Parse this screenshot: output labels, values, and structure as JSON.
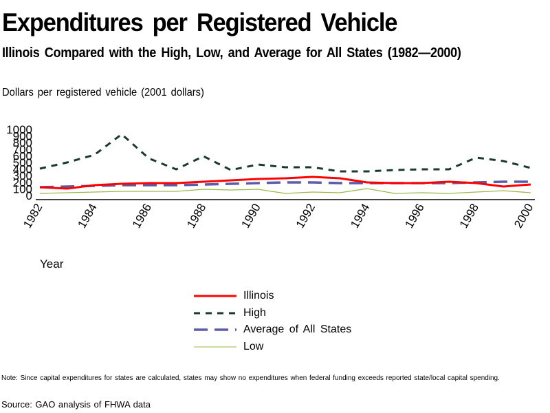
{
  "header": {
    "title": "Expenditures per Registered Vehicle",
    "subtitle": "Illinois Compared with the High, Low, and Average for All States (1982—2000)"
  },
  "footer": {
    "note": "Note: Since capital expenditures for states are calculated, states may show no expenditures when federal funding exceeds reported state/local capital spending.",
    "source": "Source: GAO analysis of FHWA data"
  },
  "chart_data": {
    "type": "line",
    "title": "Expenditures per Registered Vehicle",
    "subtitle": "Illinois Compared with the High, Low, and Average for All States (1982—2000)",
    "xlabel": "Year",
    "ylabel": "Dollars per registered vehicle (2001 dollars)",
    "ylim": [
      0,
      1000
    ],
    "yticks": [
      0,
      100,
      200,
      300,
      400,
      500,
      600,
      700,
      800,
      900,
      1000
    ],
    "ytick_labels": [
      "0",
      "100",
      "200",
      "300",
      "400",
      "500",
      "600",
      "700",
      "800",
      "900",
      "1000"
    ],
    "x": [
      1982,
      1983,
      1984,
      1985,
      1986,
      1987,
      1988,
      1989,
      1990,
      1991,
      1992,
      1993,
      1994,
      1995,
      1996,
      1997,
      1998,
      1999,
      2000
    ],
    "xlim": [
      1982,
      2000
    ],
    "xticks": [
      1982,
      1984,
      1986,
      1988,
      1990,
      1992,
      1994,
      1996,
      1998,
      2000
    ],
    "xtick_labels": [
      "1982",
      "1984",
      "1986",
      "1988",
      "1990",
      "1992",
      "1994",
      "1996",
      "1998",
      "2000"
    ],
    "grid": false,
    "legend_position": "bottom-center",
    "series": [
      {
        "name": "Illinois",
        "color": "#ff0000",
        "style": "solid",
        "values": [
          125,
          104,
          156,
          177,
          188,
          188,
          208,
          229,
          250,
          260,
          281,
          260,
          198,
          188,
          188,
          208,
          188,
          135,
          167
        ]
      },
      {
        "name": "High",
        "color": "#1a3a2a",
        "style": "dashed",
        "values": [
          406,
          500,
          615,
          927,
          560,
          396,
          594,
          385,
          469,
          427,
          427,
          365,
          365,
          385,
          396,
          396,
          573,
          521,
          417
        ]
      },
      {
        "name": "Average of All States",
        "color": "#5b5ba8",
        "style": "long-dashed",
        "values": [
          125,
          135,
          146,
          156,
          156,
          156,
          167,
          177,
          188,
          198,
          198,
          188,
          188,
          188,
          188,
          188,
          198,
          208,
          208
        ]
      },
      {
        "name": "Low",
        "color": "#9ab84a",
        "style": "thin-solid",
        "values": [
          31,
          42,
          52,
          62,
          62,
          62,
          94,
          83,
          94,
          31,
          52,
          42,
          104,
          31,
          42,
          31,
          52,
          73,
          42
        ]
      }
    ]
  }
}
